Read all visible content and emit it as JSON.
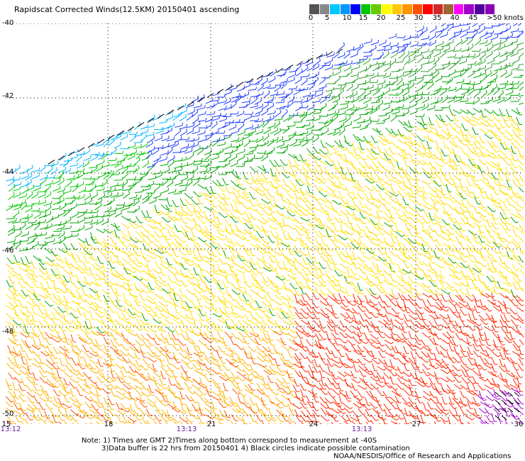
{
  "title": "Rapidscat Corrected Winds(12.5KM) 20150401 ascending",
  "legend": {
    "labels": [
      "0",
      "5",
      "10",
      "15",
      "20",
      "25",
      "30",
      "35",
      "40",
      "45",
      ">50 knots"
    ],
    "colors": [
      "#555555",
      "#888888",
      "#00c8ff",
      "#0096ff",
      "#0000ff",
      "#00c800",
      "#66cc00",
      "#ffff00",
      "#ffc800",
      "#ff9600",
      "#ff5000",
      "#ff0000",
      "#d22828",
      "#a06432",
      "#ff00ff",
      "#a000c8",
      "#5000a0",
      "#8c00b4"
    ]
  },
  "axes": {
    "lat_labels": [
      "-40",
      "-42",
      "-44",
      "-46",
      "-48",
      "-50"
    ],
    "lon_labels": [
      "15",
      "18",
      "21",
      "24",
      "27",
      "30"
    ],
    "time_labels": [
      "13:12",
      "13:13",
      "13:13"
    ],
    "grid": true
  },
  "notes": {
    "line1": "Note: 1) Times are GMT 2)Times along bottom correspond to measurement at -40S",
    "line2": "3)Data buffer is 22 hrs from 20150401 4) Black circles indicate possible contamination",
    "credit": "NOAA/NESDIS/Office of Research and Applications"
  },
  "chart_data": {
    "type": "wind-barb-map",
    "title": "Rapidscat Corrected Winds(12.5KM) 20150401 ascending",
    "lat_range": [
      -50,
      -40
    ],
    "lon_range": [
      15,
      30
    ],
    "units": "knots",
    "grid": true,
    "speed_scale_knots": [
      0,
      5,
      10,
      15,
      20,
      25,
      30,
      35,
      40,
      45,
      50
    ]
  }
}
